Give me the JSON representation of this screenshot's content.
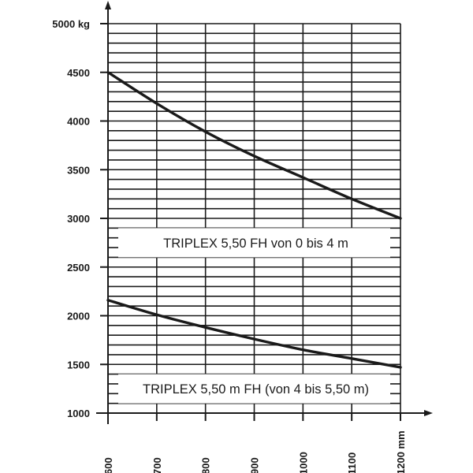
{
  "chart_data": {
    "type": "line",
    "title": "",
    "xlabel": "",
    "ylabel": "",
    "xlim": [
      600,
      1200
    ],
    "ylim": [
      1000,
      5000
    ],
    "x_ticks": [
      600,
      700,
      800,
      900,
      1000,
      1100,
      1200
    ],
    "x_tick_labels": [
      "600",
      "700",
      "800",
      "900",
      "1000",
      "1100",
      "1200 mm"
    ],
    "y_ticks": [
      1000,
      1500,
      2000,
      2500,
      3000,
      3500,
      4000,
      4500,
      5000
    ],
    "y_tick_labels": [
      "1000",
      "1500",
      "2000",
      "2500",
      "3000",
      "3500",
      "4000",
      "4500",
      "5000 kg"
    ],
    "grid": true,
    "grid_minor_step_y": 100,
    "legend": "none",
    "series": [
      {
        "x": [
          600,
          700,
          800,
          900,
          1000,
          1100,
          1200
        ],
        "values": [
          4500,
          4180,
          3890,
          3640,
          3420,
          3200,
          3000
        ]
      },
      {
        "x": [
          600,
          700,
          800,
          900,
          1000,
          1100,
          1200
        ],
        "values": [
          2160,
          2010,
          1880,
          1760,
          1650,
          1560,
          1470
        ]
      }
    ],
    "annotations": [
      {
        "text": "TRIPLEX 5,50 FH von 0 bis 4 m",
        "y_band": [
          2600,
          2900
        ]
      },
      {
        "text": "TRIPLEX 5,50 m FH (von 4 bis 5,50 m)",
        "y_band": [
          1100,
          1400
        ]
      }
    ],
    "colors": {
      "line": "#1a1a1a",
      "grid": "#1a1a1a",
      "background": "#ffffff"
    }
  }
}
